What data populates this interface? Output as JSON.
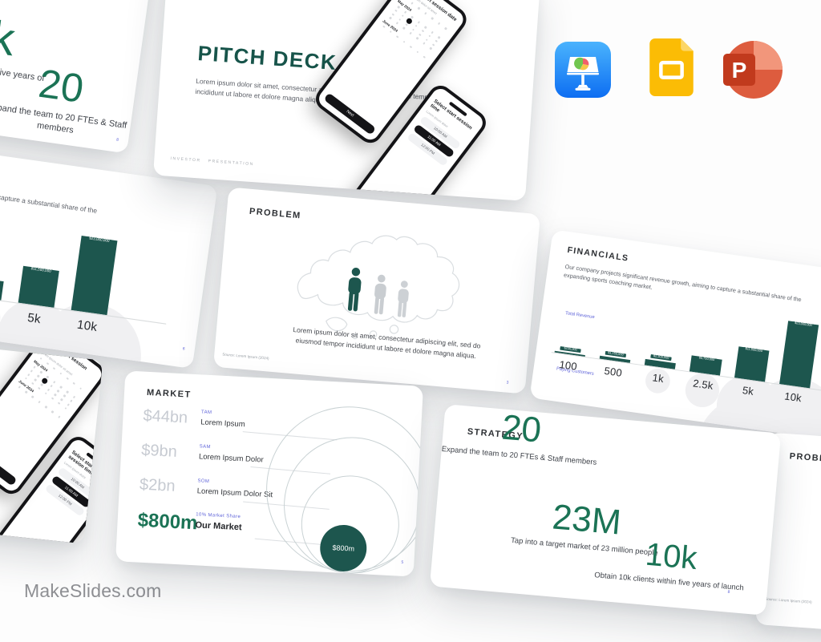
{
  "brand": {
    "wordmark": "MakeSlides.com"
  },
  "icons": {
    "keynote": "Apple Keynote",
    "google_slides": "Google Slides",
    "powerpoint": "Microsoft PowerPoint"
  },
  "colors": {
    "accent_green": "#1B7355",
    "teal_dark": "#1D564E",
    "title_teal": "#17544A",
    "label_blue": "#6065D9",
    "muted_gray": "#C7CBD2"
  },
  "slides": {
    "title_slide": {
      "title": "PITCH DECK",
      "body": "Lorem ipsum dolor sit amet, consectetur adipiscing elit, sed do eiusmod tempor incididunt ut labore et dolore magna aliqua",
      "footer": "INVESTOR PRESENTATION",
      "phone_date": {
        "heading": "Select start session date",
        "subheading": "Lorem ipsum dolor sit amet",
        "month_1": "May 2024",
        "month_2": "June 2024",
        "button": "Next"
      },
      "phone_time": {
        "heading": "Select start session time",
        "subheading": "Lorem ipsum dolor",
        "times": [
          "10:00 AM",
          "11:00 AM",
          "12:00 PM"
        ]
      }
    },
    "problem": {
      "title": "PROBLEM",
      "body": "Lorem ipsum dolor sit amet, consectetur adipiscing elit, sed do eiusmod tempor incididunt ut labore et dolore magna aliqua.",
      "source": "Source: Lorem Ipsum (2024)",
      "page_number": "3"
    },
    "market": {
      "title": "MARKET",
      "rows": [
        {
          "value": "$44bn",
          "tag": "TAM",
          "label": "Lorem Ipsum"
        },
        {
          "value": "$9bn",
          "tag": "SAM",
          "label": "Lorem Ipsum Dolor"
        },
        {
          "value": "$2bn",
          "tag": "SOM",
          "label": "Lorem Ipsum Dolor Sit"
        },
        {
          "value": "$800m",
          "tag": "10% Market Share",
          "label": "Our Market"
        }
      ],
      "bubble_label": "$800m",
      "page_number": "5"
    },
    "financials": {
      "title": "FINANCIALS",
      "body": "Our company projects significant revenue growth, aiming to capture a substantial share of the expanding sports coaching market.",
      "y_axis_label": "Total Revenue",
      "x_axis_label": "Paying Customers",
      "page_number": "6"
    },
    "strategy": {
      "title": "STRATEGY",
      "stats": [
        {
          "value": "23M",
          "caption": "Tap into a target market of 23 million people"
        },
        {
          "value": "10k",
          "caption": "Obtain 10k clients within five years of launch"
        },
        {
          "value": "20",
          "caption": "Expand the team to 20 FTEs & Staff members"
        }
      ],
      "page_number": "8"
    }
  },
  "chart_data": [
    {
      "type": "bar",
      "slide": "FINANCIALS",
      "title": "FINANCIALS",
      "categories": [
        "100",
        "500",
        "1k",
        "2.5k",
        "5k",
        "10k"
      ],
      "values": [
        230000,
        1150000,
        2300000,
        5750000,
        11500000,
        23000000
      ],
      "bar_labels": [
        "$230,000",
        "$1,150,000",
        "$2,300,000",
        "$5,750,000",
        "$11,500,000",
        "$23,000,000"
      ],
      "xlabel": "Paying Customers",
      "ylabel": "Total Revenue",
      "ylim": [
        0,
        23000000
      ],
      "grid": false,
      "legend": false,
      "bar_color": "#1D564E"
    },
    {
      "type": "pie",
      "slide": "MARKET",
      "style": "concentric-circles",
      "labels": [
        "TAM",
        "SAM",
        "SOM",
        "Our Market (10% Market Share)"
      ],
      "value_labels": [
        "$44bn",
        "$9bn",
        "$2bn",
        "$800m"
      ],
      "values": [
        44000000000,
        9000000000,
        2000000000,
        800000000
      ],
      "highlight_label": "$800m"
    }
  ]
}
